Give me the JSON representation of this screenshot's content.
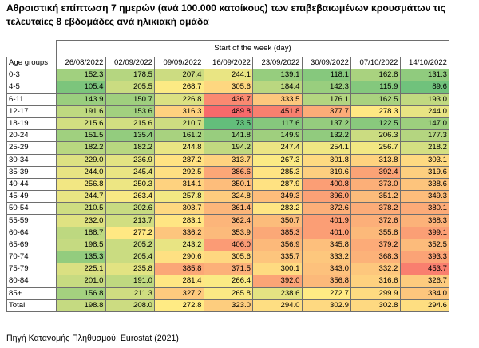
{
  "title": "Αθροιστική επίπτωση 7 ημερών (ανά 100.000 κατοίκους) των επιβεβαιωμένων κρουσμάτων τις τελευταίες 8 εβδομάδες ανά ηλικιακή ομάδα",
  "table": {
    "week_header": "Start of the week (day)",
    "group_header": "Age groups",
    "dates": [
      "26/08/2022",
      "02/09/2022",
      "09/09/2022",
      "16/09/2022",
      "23/09/2022",
      "30/09/2022",
      "07/10/2022",
      "14/10/2022"
    ],
    "rows": [
      {
        "label": "0-3",
        "values": [
          152.3,
          178.5,
          207.4,
          244.1,
          139.1,
          118.1,
          162.8,
          131.3
        ]
      },
      {
        "label": "4-5",
        "values": [
          105.4,
          205.5,
          268.7,
          305.6,
          184.4,
          142.3,
          115.9,
          89.6
        ]
      },
      {
        "label": "6-11",
        "values": [
          143.9,
          150.7,
          226.8,
          436.7,
          333.5,
          176.1,
          162.5,
          193.0
        ]
      },
      {
        "label": "12-17",
        "values": [
          191.6,
          153.6,
          316.3,
          489.8,
          451.8,
          377.7,
          278.3,
          244.0
        ]
      },
      {
        "label": "18-19",
        "values": [
          215.6,
          215.6,
          210.7,
          73.5,
          117.6,
          137.2,
          122.5,
          147.0
        ]
      },
      {
        "label": "20-24",
        "values": [
          151.5,
          135.4,
          161.2,
          141.8,
          149.9,
          132.2,
          206.3,
          177.3
        ]
      },
      {
        "label": "25-29",
        "values": [
          182.2,
          182.2,
          244.8,
          194.2,
          247.4,
          254.1,
          256.7,
          218.2
        ]
      },
      {
        "label": "30-34",
        "values": [
          229.0,
          236.9,
          287.2,
          313.7,
          267.3,
          301.8,
          313.8,
          303.1
        ]
      },
      {
        "label": "35-39",
        "values": [
          244.0,
          245.4,
          292.5,
          386.6,
          285.3,
          319.6,
          392.4,
          319.6
        ]
      },
      {
        "label": "40-44",
        "values": [
          256.8,
          250.3,
          314.1,
          350.1,
          287.9,
          400.8,
          373.0,
          338.6
        ]
      },
      {
        "label": "45-49",
        "values": [
          244.7,
          263.4,
          257.8,
          324.8,
          349.3,
          396.0,
          351.2,
          349.3
        ]
      },
      {
        "label": "50-54",
        "values": [
          210.5,
          202.6,
          303.7,
          361.4,
          283.2,
          372.6,
          378.2,
          380.1
        ]
      },
      {
        "label": "55-59",
        "values": [
          232.0,
          213.7,
          283.1,
          362.4,
          350.7,
          401.9,
          372.6,
          368.3
        ]
      },
      {
        "label": "60-64",
        "values": [
          188.7,
          277.2,
          336.2,
          353.9,
          385.3,
          401.0,
          355.8,
          399.1
        ]
      },
      {
        "label": "65-69",
        "values": [
          198.5,
          205.2,
          243.2,
          406.0,
          356.9,
          345.8,
          379.2,
          352.5
        ]
      },
      {
        "label": "70-74",
        "values": [
          135.3,
          205.4,
          290.6,
          305.6,
          335.7,
          333.2,
          368.3,
          393.3
        ]
      },
      {
        "label": "75-79",
        "values": [
          225.1,
          235.8,
          385.8,
          371.5,
          300.1,
          343.0,
          332.2,
          453.7
        ]
      },
      {
        "label": "80-84",
        "values": [
          201.0,
          191.0,
          281.4,
          266.4,
          392.0,
          356.8,
          316.6,
          326.7
        ]
      },
      {
        "label": "85+",
        "values": [
          156.8,
          211.3,
          327.2,
          265.8,
          238.6,
          272.7,
          299.9,
          334.0
        ]
      },
      {
        "label": "Total",
        "values": [
          198.8,
          208.0,
          272.8,
          323.0,
          294.0,
          302.9,
          302.8,
          294.6
        ]
      }
    ]
  },
  "colors": {
    "low": "#63be7b",
    "mid": "#ffeb84",
    "high": "#f8696b"
  },
  "source": "Πηγή Κατανομής Πληθυσμού: Eurostat (2021)"
}
